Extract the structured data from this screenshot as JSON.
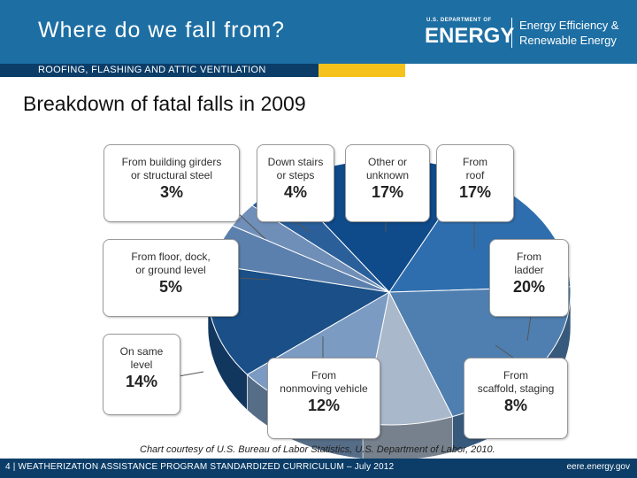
{
  "header": {
    "title": "Where do we fall from?",
    "subtitle": "ROOFING, FLASHING AND ATTIC VENTILATION",
    "logo_small": "U.S. DEPARTMENT OF",
    "logo_big": "ENERGY",
    "logo_right_line1": "Energy Efficiency &",
    "logo_right_line2": "Renewable Energy"
  },
  "heading": "Breakdown of fatal falls in 2009",
  "credit": "Chart courtesy of U.S. Bureau of Labor Statistics, U.S. Department of Labor, 2010.",
  "footer": {
    "left": "4 | WEATHERIZATION ASSISTANCE PROGRAM STANDARDIZED CURRICULUM – July 2012",
    "right": "eere.energy.gov"
  },
  "colors": {
    "header_blue": "#1d6ea3",
    "navy": "#0b3d68",
    "accent_yellow": "#f5c21b"
  },
  "chart_data": {
    "type": "pie",
    "title": "",
    "slices": [
      {
        "label": "From building girders\nor structural steel",
        "value": 3,
        "pct": "3%",
        "color": "#6f8fb8"
      },
      {
        "label": "Down stairs\nor steps",
        "value": 4,
        "pct": "4%",
        "color": "#2a5f9a"
      },
      {
        "label": "Other or\nunknown",
        "value": 17,
        "pct": "17%",
        "color": "#0f4a8a"
      },
      {
        "label": "From\nroof",
        "value": 17,
        "pct": "17%",
        "color": "#2f6eae"
      },
      {
        "label": "From\nladder",
        "value": 20,
        "pct": "20%",
        "color": "#4f7fb0"
      },
      {
        "label": "From\nscaffold, staging",
        "value": 8,
        "pct": "8%",
        "color": "#a9b8ca"
      },
      {
        "label": "From\nnonmoving vehicle",
        "value": 12,
        "pct": "12%",
        "color": "#7b9bc2"
      },
      {
        "label": "On same\nlevel",
        "value": 14,
        "pct": "14%",
        "color": "#1a4f87"
      },
      {
        "label": "From floor, dock,\nor ground level",
        "value": 5,
        "pct": "5%",
        "color": "#5c80ad"
      }
    ]
  }
}
